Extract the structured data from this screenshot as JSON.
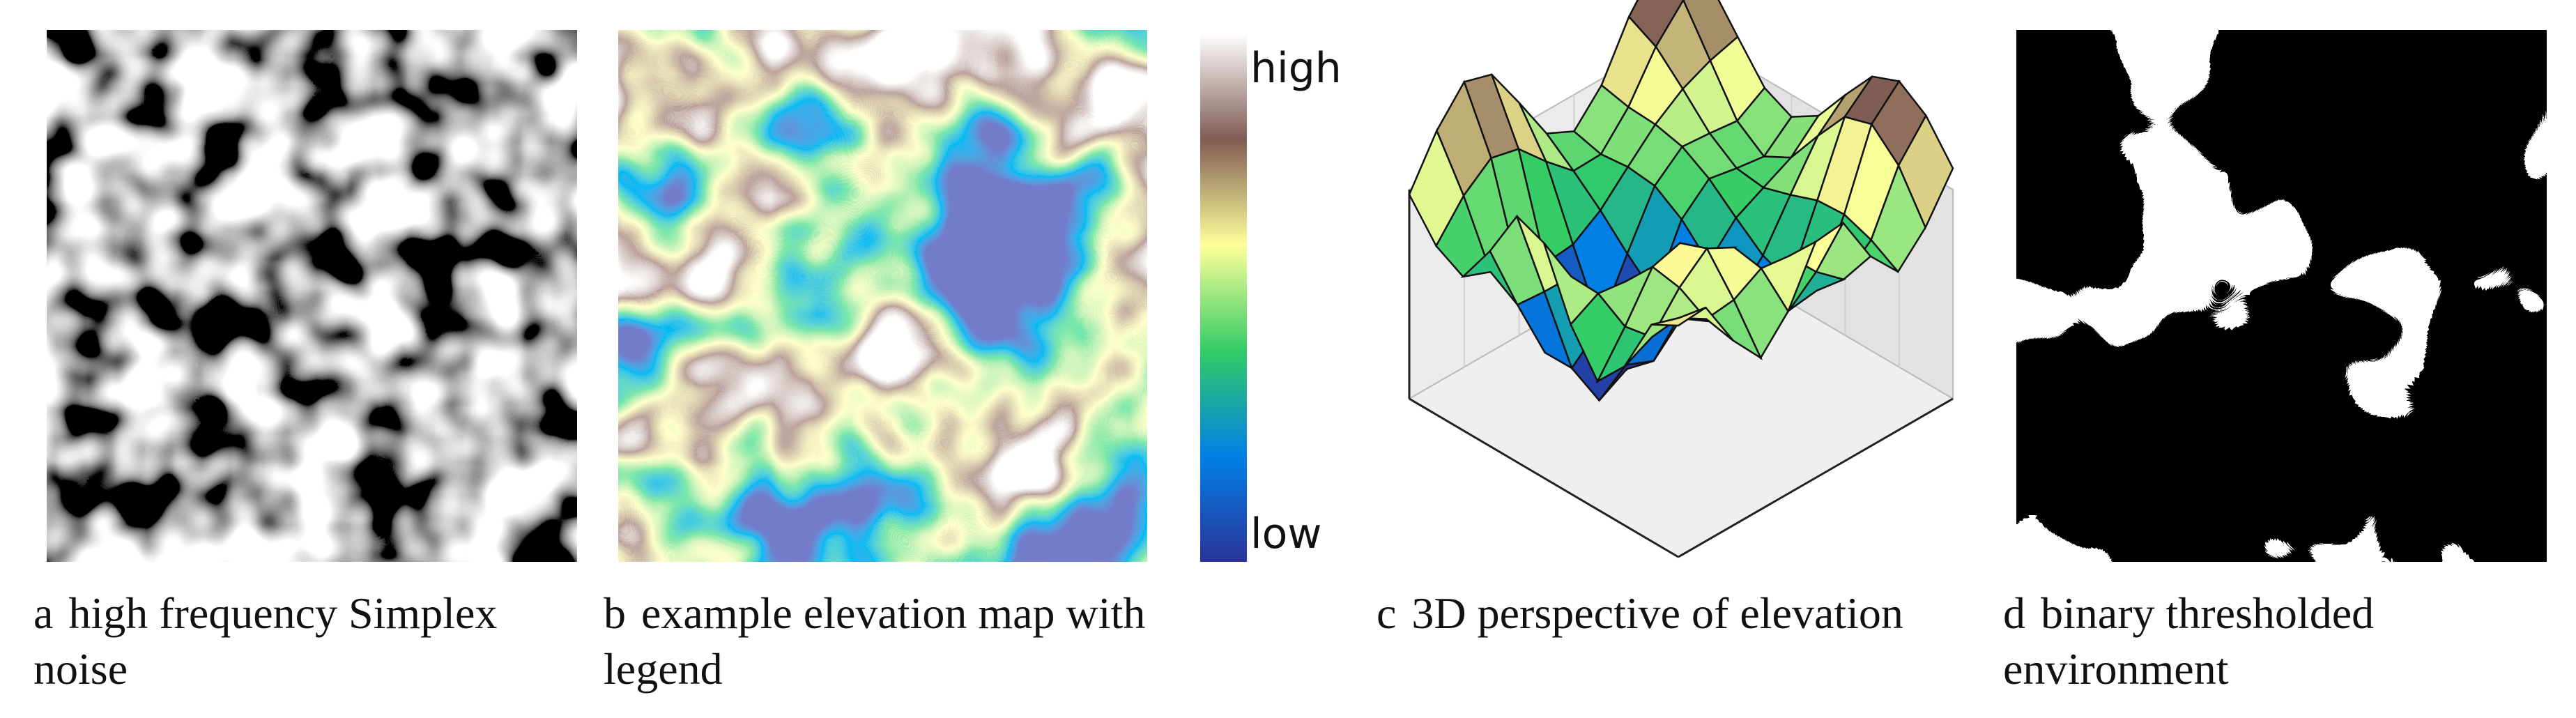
{
  "panels": [
    {
      "label": "a",
      "caption": "high frequency Simplex noise"
    },
    {
      "label": "b",
      "caption": "example elevation map with legend"
    },
    {
      "label": "c",
      "caption": "3D perspective of elevation"
    },
    {
      "label": "d",
      "caption": "binary thresholded environment"
    }
  ],
  "legend": {
    "high": "high",
    "low": "low"
  }
}
